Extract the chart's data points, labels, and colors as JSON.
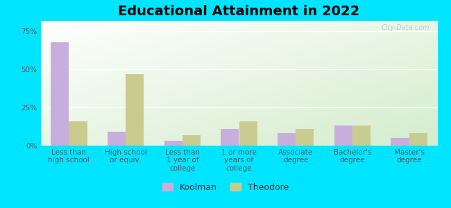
{
  "title": "Educational Attainment in 2022",
  "categories": [
    "Less than\nhigh school",
    "High school\nor equiv.",
    "Less than\n1 year of\ncollege",
    "1 or more\nyears of\ncollege",
    "Associate\ndegree",
    "Bachelor's\ndegree",
    "Master's\ndegree"
  ],
  "koolman": [
    68,
    9,
    3,
    11,
    8,
    13,
    5
  ],
  "theodore": [
    16,
    47,
    7,
    16,
    11,
    13,
    8
  ],
  "koolman_color": "#c8aedd",
  "theodore_color": "#c8cc90",
  "background_top_right": "#f0f8f0",
  "background_bottom_left": "#d4edcc",
  "outer_background": "#00e5ff",
  "yticks": [
    0,
    25,
    50,
    75
  ],
  "ylim": [
    0,
    82
  ],
  "bar_width": 0.32,
  "legend_koolman": "Koolman",
  "legend_theodore": "Theodore",
  "title_fontsize": 14,
  "tick_fontsize": 7.5,
  "legend_fontsize": 9
}
